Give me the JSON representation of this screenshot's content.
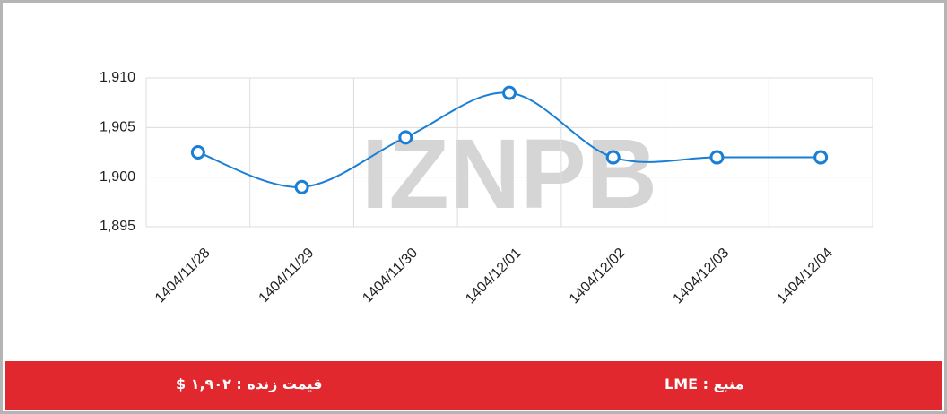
{
  "chart_data": {
    "type": "line",
    "categories": [
      "1404/11/28",
      "1404/11/29",
      "1404/11/30",
      "1404/12/01",
      "1404/12/02",
      "1404/12/03",
      "1404/12/04"
    ],
    "series": [
      {
        "color": "#1a7fd4",
        "values": [
          1902.5,
          1899,
          1904,
          1908.5,
          1902,
          1902,
          1902
        ]
      }
    ],
    "ylim": [
      1895,
      1910
    ],
    "yticks": [
      {
        "value": 1895,
        "label": "1,895"
      },
      {
        "value": 1900,
        "label": "1,900"
      },
      {
        "value": 1905,
        "label": "1,905"
      },
      {
        "value": 1910,
        "label": "1,910"
      }
    ],
    "grid": true
  },
  "watermark": "IZNPB",
  "footer": {
    "price": "قیمت زنده : ۱,۹۰۲ $",
    "source": "منبع : LME"
  }
}
